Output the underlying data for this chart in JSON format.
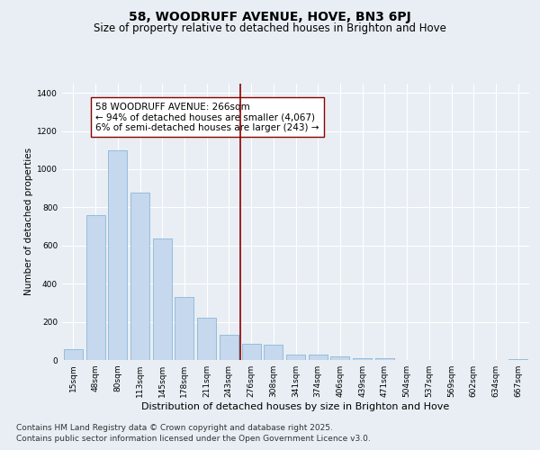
{
  "title": "58, WOODRUFF AVENUE, HOVE, BN3 6PJ",
  "subtitle": "Size of property relative to detached houses in Brighton and Hove",
  "xlabel": "Distribution of detached houses by size in Brighton and Hove",
  "ylabel": "Number of detached properties",
  "categories": [
    "15sqm",
    "48sqm",
    "80sqm",
    "113sqm",
    "145sqm",
    "178sqm",
    "211sqm",
    "243sqm",
    "276sqm",
    "308sqm",
    "341sqm",
    "374sqm",
    "406sqm",
    "439sqm",
    "471sqm",
    "504sqm",
    "537sqm",
    "569sqm",
    "602sqm",
    "634sqm",
    "667sqm"
  ],
  "values": [
    55,
    760,
    1100,
    875,
    635,
    330,
    220,
    130,
    85,
    80,
    28,
    28,
    18,
    8,
    8,
    0,
    0,
    0,
    0,
    0,
    4
  ],
  "bar_color": "#c5d8ed",
  "bar_edge_color": "#7bafd4",
  "vline_color": "#8b0000",
  "annotation_text": "58 WOODRUFF AVENUE: 266sqm\n← 94% of detached houses are smaller (4,067)\n6% of semi-detached houses are larger (243) →",
  "annotation_box_color": "#ffffff",
  "annotation_box_edge": "#8b0000",
  "ylim": [
    0,
    1450
  ],
  "yticks": [
    0,
    200,
    400,
    600,
    800,
    1000,
    1200,
    1400
  ],
  "background_color": "#e8eef4",
  "footer_line1": "Contains HM Land Registry data © Crown copyright and database right 2025.",
  "footer_line2": "Contains public sector information licensed under the Open Government Licence v3.0.",
  "title_fontsize": 10,
  "subtitle_fontsize": 8.5,
  "xlabel_fontsize": 8,
  "ylabel_fontsize": 7.5,
  "annotation_fontsize": 7.5,
  "tick_fontsize": 6.5,
  "footer_fontsize": 6.5
}
